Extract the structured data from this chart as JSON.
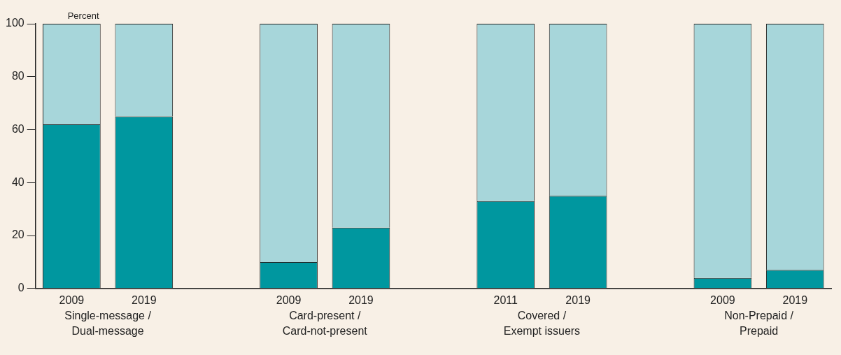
{
  "chart_data": {
    "type": "bar",
    "stacked": true,
    "ylabel": "Percent",
    "categories": [
      "2009",
      "2019",
      null,
      "2009",
      "2019",
      null,
      "2011",
      "2019",
      null,
      "2009",
      "2019"
    ],
    "series": [
      {
        "color": "#00979f",
        "values": [
          62,
          65,
          null,
          10,
          23,
          null,
          33,
          35,
          null,
          4,
          7
        ]
      },
      {
        "color": "#a7d6da",
        "values": [
          38,
          35,
          null,
          90,
          77,
          null,
          67,
          65,
          null,
          96,
          93
        ]
      }
    ],
    "ylim": [
      0,
      100
    ],
    "yticks": [
      0,
      20,
      40,
      60,
      80,
      100
    ],
    "grid": false,
    "legend": false,
    "annotations": [
      "Single-message /\nDual-message",
      "Card-present /\nCard-not-present",
      "Covered /\nExempt issuers",
      "Non-Prepaid /\nPrepaid"
    ]
  }
}
